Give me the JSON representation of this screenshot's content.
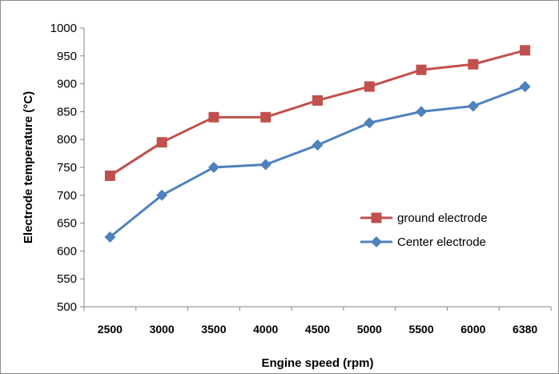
{
  "chart_data": {
    "type": "line",
    "title": "",
    "xlabel": "Engine speed (rpm)",
    "ylabel": "Electrode temperature (°C)",
    "categories": [
      "2500",
      "3000",
      "3500",
      "4000",
      "4500",
      "5000",
      "5500",
      "6000",
      "6380"
    ],
    "ylim": [
      500,
      1000
    ],
    "yticks": [
      500,
      550,
      600,
      650,
      700,
      750,
      800,
      850,
      900,
      950,
      1000
    ],
    "grid": false,
    "legend_position": "right",
    "series": [
      {
        "name": "ground electrode",
        "color": "#c0504d",
        "marker": "square",
        "values": [
          735,
          795,
          840,
          840,
          870,
          895,
          925,
          935,
          960
        ]
      },
      {
        "name": "Center electrode",
        "color": "#4f81bd",
        "marker": "diamond",
        "values": [
          625,
          700,
          750,
          755,
          790,
          830,
          850,
          860,
          895
        ]
      }
    ]
  }
}
